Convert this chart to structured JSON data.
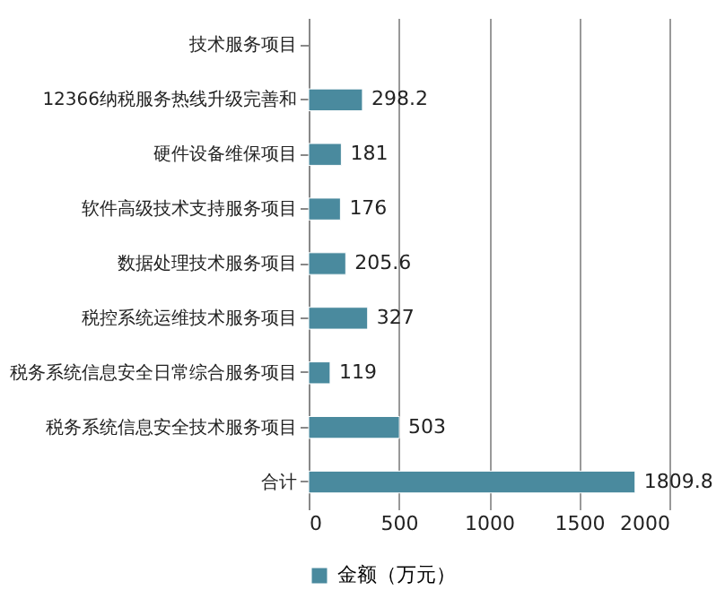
{
  "chart_data": {
    "type": "bar",
    "orientation": "horizontal",
    "categories": [
      "技术服务项目",
      "12366纳税服务热线升级完善和",
      "硬件设备维保项目",
      "软件高级技术支持服务项目",
      "数据处理技术服务项目",
      "税控系统运维技术服务项目",
      "税务系统信息安全日常综合服务项目",
      "税务系统信息安全技术服务项目",
      "合计"
    ],
    "series": [
      {
        "name": "金额（万元）",
        "color": "#4a8a9e",
        "values": [
          null,
          298.2,
          181,
          176,
          205.6,
          327,
          119,
          503,
          1809.8
        ]
      }
    ],
    "xlim": [
      0,
      2000
    ],
    "xticks": [
      0,
      500,
      1000,
      1500,
      2000
    ],
    "grid": "x",
    "legend": "bottom",
    "data_labels": true
  }
}
